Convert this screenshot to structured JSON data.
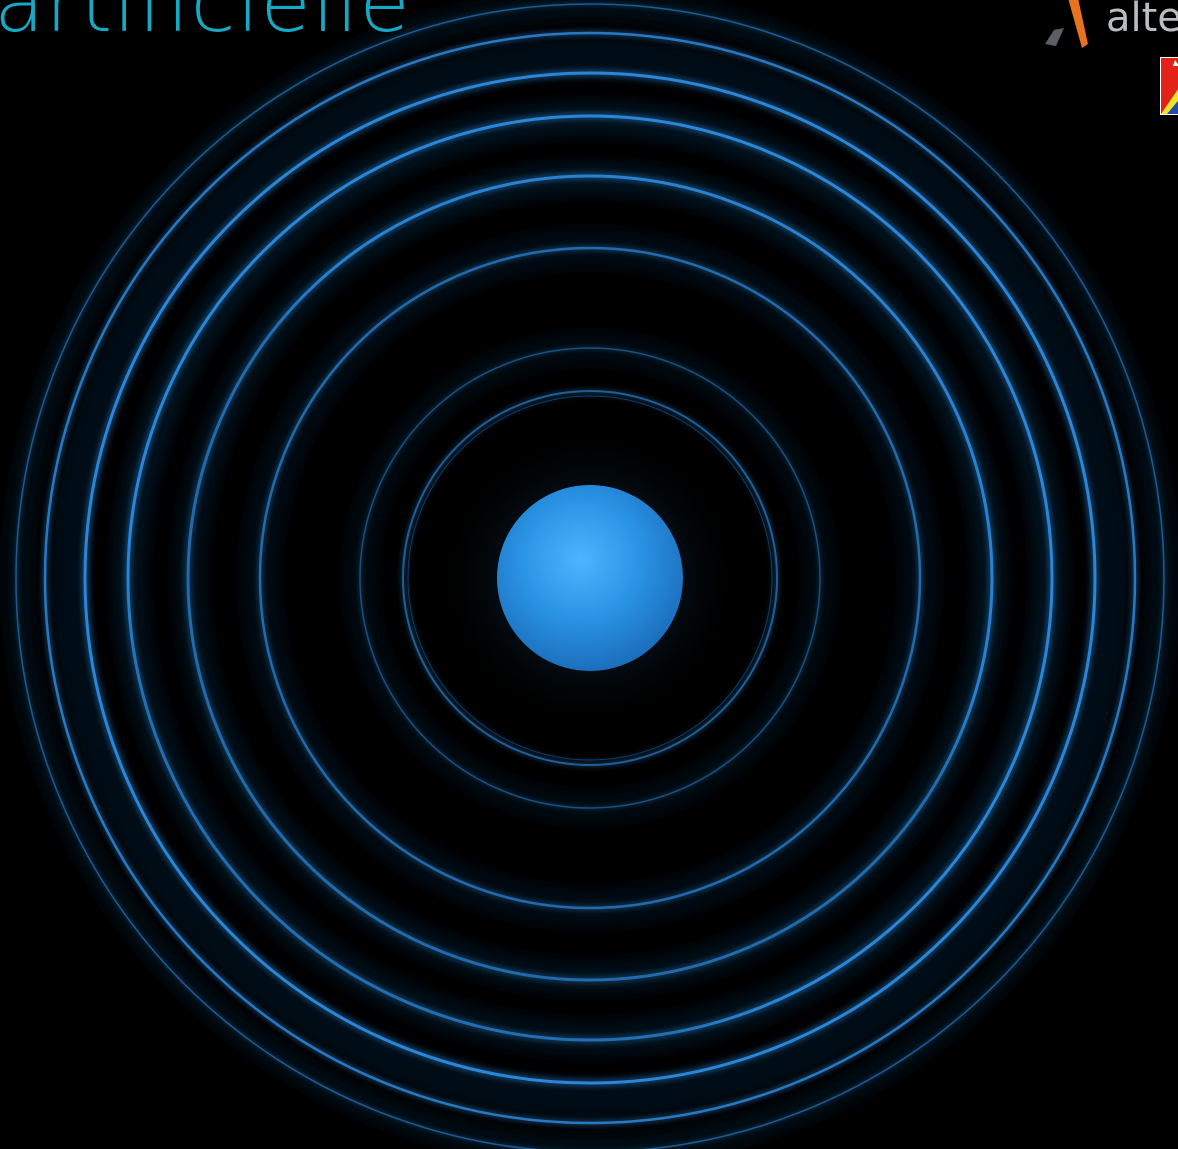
{
  "headline": {
    "text": "artificielle",
    "color": "#17a9c4"
  },
  "logo": {
    "text": "alte",
    "text_color": "#b9bcc0",
    "mark_icon": "alteca-mark-icon",
    "mark_colors": [
      "#e8731e",
      "#5a5f66"
    ]
  },
  "badge": {
    "icon": "flag-badge-icon",
    "colors": [
      "#e32219",
      "#f3e22c",
      "#1e4fa8",
      "#ffffff"
    ]
  },
  "visual": {
    "subject": "concentric-blue-rings",
    "ring_color": "#2f8fe6",
    "core_color": "#2c97e8",
    "background": "#000000"
  }
}
